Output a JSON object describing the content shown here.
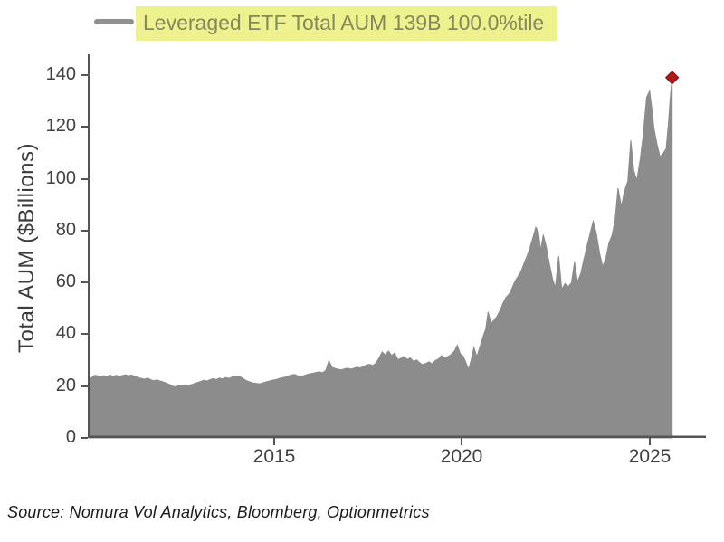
{
  "legend": {
    "label": "Leveraged ETF Total AUM 139B 100.0%tile",
    "swatch_color": "#909090",
    "highlight_color": "#edf28f",
    "text_color": "#85875c"
  },
  "source_note": "Source: Nomura Vol Analytics, Bloomberg, Optionmetrics",
  "chart_data": {
    "type": "area",
    "title": "",
    "xlabel": "",
    "ylabel": "Total AUM ($Billions)",
    "xlim": [
      2010.04,
      2026.5
    ],
    "ylim": [
      0,
      148
    ],
    "grid": false,
    "legend_position": "top-left",
    "area_color": "#8c8c8c",
    "axis_color": "#555555",
    "tick_label_color": "#404040",
    "ytick_values": [
      0,
      20,
      40,
      60,
      80,
      100,
      120,
      140
    ],
    "ytick_labels": [
      "0",
      "20",
      "40",
      "60",
      "80",
      "100",
      "120",
      "140"
    ],
    "xtick_values": [
      2015,
      2020,
      2025
    ],
    "xtick_labels": [
      "2015",
      "2020",
      "2025"
    ],
    "marker": {
      "shape": "diamond",
      "x": 2025.6,
      "y": 139,
      "color": "#b11818",
      "edge_color": "#7e0d0d"
    },
    "series": [
      {
        "name": "Leveraged ETF Total AUM",
        "points": [
          [
            2010.07,
            22.6
          ],
          [
            2010.15,
            23.4
          ],
          [
            2010.23,
            24.2
          ],
          [
            2010.3,
            24.0
          ],
          [
            2010.38,
            23.6
          ],
          [
            2010.46,
            24.1
          ],
          [
            2010.55,
            23.7
          ],
          [
            2010.63,
            24.3
          ],
          [
            2010.71,
            23.8
          ],
          [
            2010.8,
            24.2
          ],
          [
            2010.88,
            23.7
          ],
          [
            2010.96,
            24.1
          ],
          [
            2011.05,
            24.4
          ],
          [
            2011.13,
            24.0
          ],
          [
            2011.21,
            24.3
          ],
          [
            2011.3,
            23.8
          ],
          [
            2011.38,
            23.3
          ],
          [
            2011.46,
            23.0
          ],
          [
            2011.55,
            22.7
          ],
          [
            2011.63,
            23.1
          ],
          [
            2011.71,
            22.5
          ],
          [
            2011.8,
            22.1
          ],
          [
            2011.88,
            22.4
          ],
          [
            2011.96,
            22.0
          ],
          [
            2012.05,
            21.6
          ],
          [
            2012.13,
            21.2
          ],
          [
            2012.21,
            20.7
          ],
          [
            2012.3,
            20.0
          ],
          [
            2012.38,
            19.7
          ],
          [
            2012.46,
            20.3
          ],
          [
            2012.55,
            20.1
          ],
          [
            2012.63,
            20.5
          ],
          [
            2012.71,
            20.2
          ],
          [
            2012.8,
            20.6
          ],
          [
            2012.88,
            21.0
          ],
          [
            2012.96,
            21.4
          ],
          [
            2013.05,
            21.8
          ],
          [
            2013.13,
            22.3
          ],
          [
            2013.21,
            22.0
          ],
          [
            2013.3,
            22.5
          ],
          [
            2013.38,
            22.9
          ],
          [
            2013.46,
            22.6
          ],
          [
            2013.55,
            23.1
          ],
          [
            2013.63,
            22.8
          ],
          [
            2013.71,
            23.3
          ],
          [
            2013.8,
            23.0
          ],
          [
            2013.88,
            23.5
          ],
          [
            2013.96,
            23.8
          ],
          [
            2014.05,
            23.9
          ],
          [
            2014.13,
            23.4
          ],
          [
            2014.21,
            22.6
          ],
          [
            2014.3,
            21.9
          ],
          [
            2014.38,
            21.5
          ],
          [
            2014.46,
            21.2
          ],
          [
            2014.55,
            21.0
          ],
          [
            2014.63,
            20.9
          ],
          [
            2014.71,
            21.3
          ],
          [
            2014.8,
            21.7
          ],
          [
            2014.88,
            22.0
          ],
          [
            2014.96,
            22.3
          ],
          [
            2015.05,
            22.5
          ],
          [
            2015.13,
            22.9
          ],
          [
            2015.21,
            23.2
          ],
          [
            2015.3,
            23.5
          ],
          [
            2015.38,
            23.9
          ],
          [
            2015.46,
            24.3
          ],
          [
            2015.55,
            24.5
          ],
          [
            2015.63,
            24.0
          ],
          [
            2015.71,
            23.7
          ],
          [
            2015.8,
            24.1
          ],
          [
            2015.88,
            24.5
          ],
          [
            2015.96,
            24.8
          ],
          [
            2016.05,
            25.0
          ],
          [
            2016.13,
            25.3
          ],
          [
            2016.21,
            25.5
          ],
          [
            2016.3,
            25.2
          ],
          [
            2016.38,
            26.1
          ],
          [
            2016.46,
            29.8
          ],
          [
            2016.55,
            27.2
          ],
          [
            2016.63,
            26.8
          ],
          [
            2016.71,
            26.5
          ],
          [
            2016.8,
            26.3
          ],
          [
            2016.88,
            26.7
          ],
          [
            2016.96,
            26.9
          ],
          [
            2017.05,
            26.6
          ],
          [
            2017.13,
            26.9
          ],
          [
            2017.21,
            27.3
          ],
          [
            2017.3,
            27.0
          ],
          [
            2017.38,
            27.6
          ],
          [
            2017.46,
            28.2
          ],
          [
            2017.55,
            28.4
          ],
          [
            2017.63,
            28.0
          ],
          [
            2017.71,
            28.8
          ],
          [
            2017.8,
            31.0
          ],
          [
            2017.88,
            33.2
          ],
          [
            2017.96,
            32.0
          ],
          [
            2018.05,
            33.5
          ],
          [
            2018.13,
            31.8
          ],
          [
            2018.21,
            32.8
          ],
          [
            2018.3,
            30.2
          ],
          [
            2018.38,
            30.8
          ],
          [
            2018.46,
            31.4
          ],
          [
            2018.55,
            30.3
          ],
          [
            2018.63,
            30.9
          ],
          [
            2018.71,
            29.6
          ],
          [
            2018.8,
            30.1
          ],
          [
            2018.88,
            29.0
          ],
          [
            2018.96,
            28.3
          ],
          [
            2019.05,
            28.8
          ],
          [
            2019.13,
            29.4
          ],
          [
            2019.21,
            28.6
          ],
          [
            2019.3,
            29.9
          ],
          [
            2019.38,
            30.5
          ],
          [
            2019.46,
            31.8
          ],
          [
            2019.55,
            30.8
          ],
          [
            2019.63,
            31.4
          ],
          [
            2019.71,
            32.2
          ],
          [
            2019.8,
            33.4
          ],
          [
            2019.88,
            35.8
          ],
          [
            2019.96,
            32.5
          ],
          [
            2020.04,
            31.6
          ],
          [
            2020.1,
            29.5
          ],
          [
            2020.18,
            26.4
          ],
          [
            2020.26,
            30.8
          ],
          [
            2020.32,
            34.9
          ],
          [
            2020.4,
            31.3
          ],
          [
            2020.48,
            35.0
          ],
          [
            2020.56,
            38.8
          ],
          [
            2020.64,
            42.2
          ],
          [
            2020.7,
            48.6
          ],
          [
            2020.78,
            44.2
          ],
          [
            2020.86,
            45.6
          ],
          [
            2020.94,
            47.0
          ],
          [
            2021.02,
            49.2
          ],
          [
            2021.1,
            52.1
          ],
          [
            2021.18,
            54.3
          ],
          [
            2021.26,
            55.5
          ],
          [
            2021.34,
            57.9
          ],
          [
            2021.42,
            60.6
          ],
          [
            2021.5,
            62.4
          ],
          [
            2021.58,
            64.3
          ],
          [
            2021.66,
            67.5
          ],
          [
            2021.74,
            70.3
          ],
          [
            2021.82,
            73.7
          ],
          [
            2021.9,
            77.6
          ],
          [
            2021.97,
            81.3
          ],
          [
            2022.04,
            79.6
          ],
          [
            2022.1,
            72.3
          ],
          [
            2022.17,
            78.4
          ],
          [
            2022.25,
            73.8
          ],
          [
            2022.33,
            67.3
          ],
          [
            2022.42,
            61.2
          ],
          [
            2022.49,
            57.9
          ],
          [
            2022.58,
            70.1
          ],
          [
            2022.66,
            57.4
          ],
          [
            2022.75,
            59.6
          ],
          [
            2022.83,
            58.4
          ],
          [
            2022.92,
            59.8
          ],
          [
            2023.0,
            67.9
          ],
          [
            2023.08,
            60.2
          ],
          [
            2023.17,
            63.5
          ],
          [
            2023.25,
            68.8
          ],
          [
            2023.33,
            73.9
          ],
          [
            2023.42,
            79.2
          ],
          [
            2023.5,
            83.6
          ],
          [
            2023.58,
            79.1
          ],
          [
            2023.67,
            71.2
          ],
          [
            2023.75,
            66.1
          ],
          [
            2023.83,
            68.9
          ],
          [
            2023.92,
            75.3
          ],
          [
            2024.0,
            78.2
          ],
          [
            2024.08,
            84.1
          ],
          [
            2024.16,
            96.4
          ],
          [
            2024.25,
            89.3
          ],
          [
            2024.33,
            95.2
          ],
          [
            2024.42,
            99.1
          ],
          [
            2024.5,
            114.8
          ],
          [
            2024.58,
            103.2
          ],
          [
            2024.66,
            99.3
          ],
          [
            2024.75,
            107.5
          ],
          [
            2024.83,
            117.0
          ],
          [
            2024.92,
            131.4
          ],
          [
            2025.0,
            133.9
          ],
          [
            2025.06,
            127.3
          ],
          [
            2025.12,
            119.2
          ],
          [
            2025.2,
            113.1
          ],
          [
            2025.28,
            108.4
          ],
          [
            2025.36,
            109.8
          ],
          [
            2025.44,
            111.5
          ],
          [
            2025.5,
            121.0
          ],
          [
            2025.55,
            131.5
          ],
          [
            2025.6,
            139.0
          ]
        ]
      }
    ]
  }
}
